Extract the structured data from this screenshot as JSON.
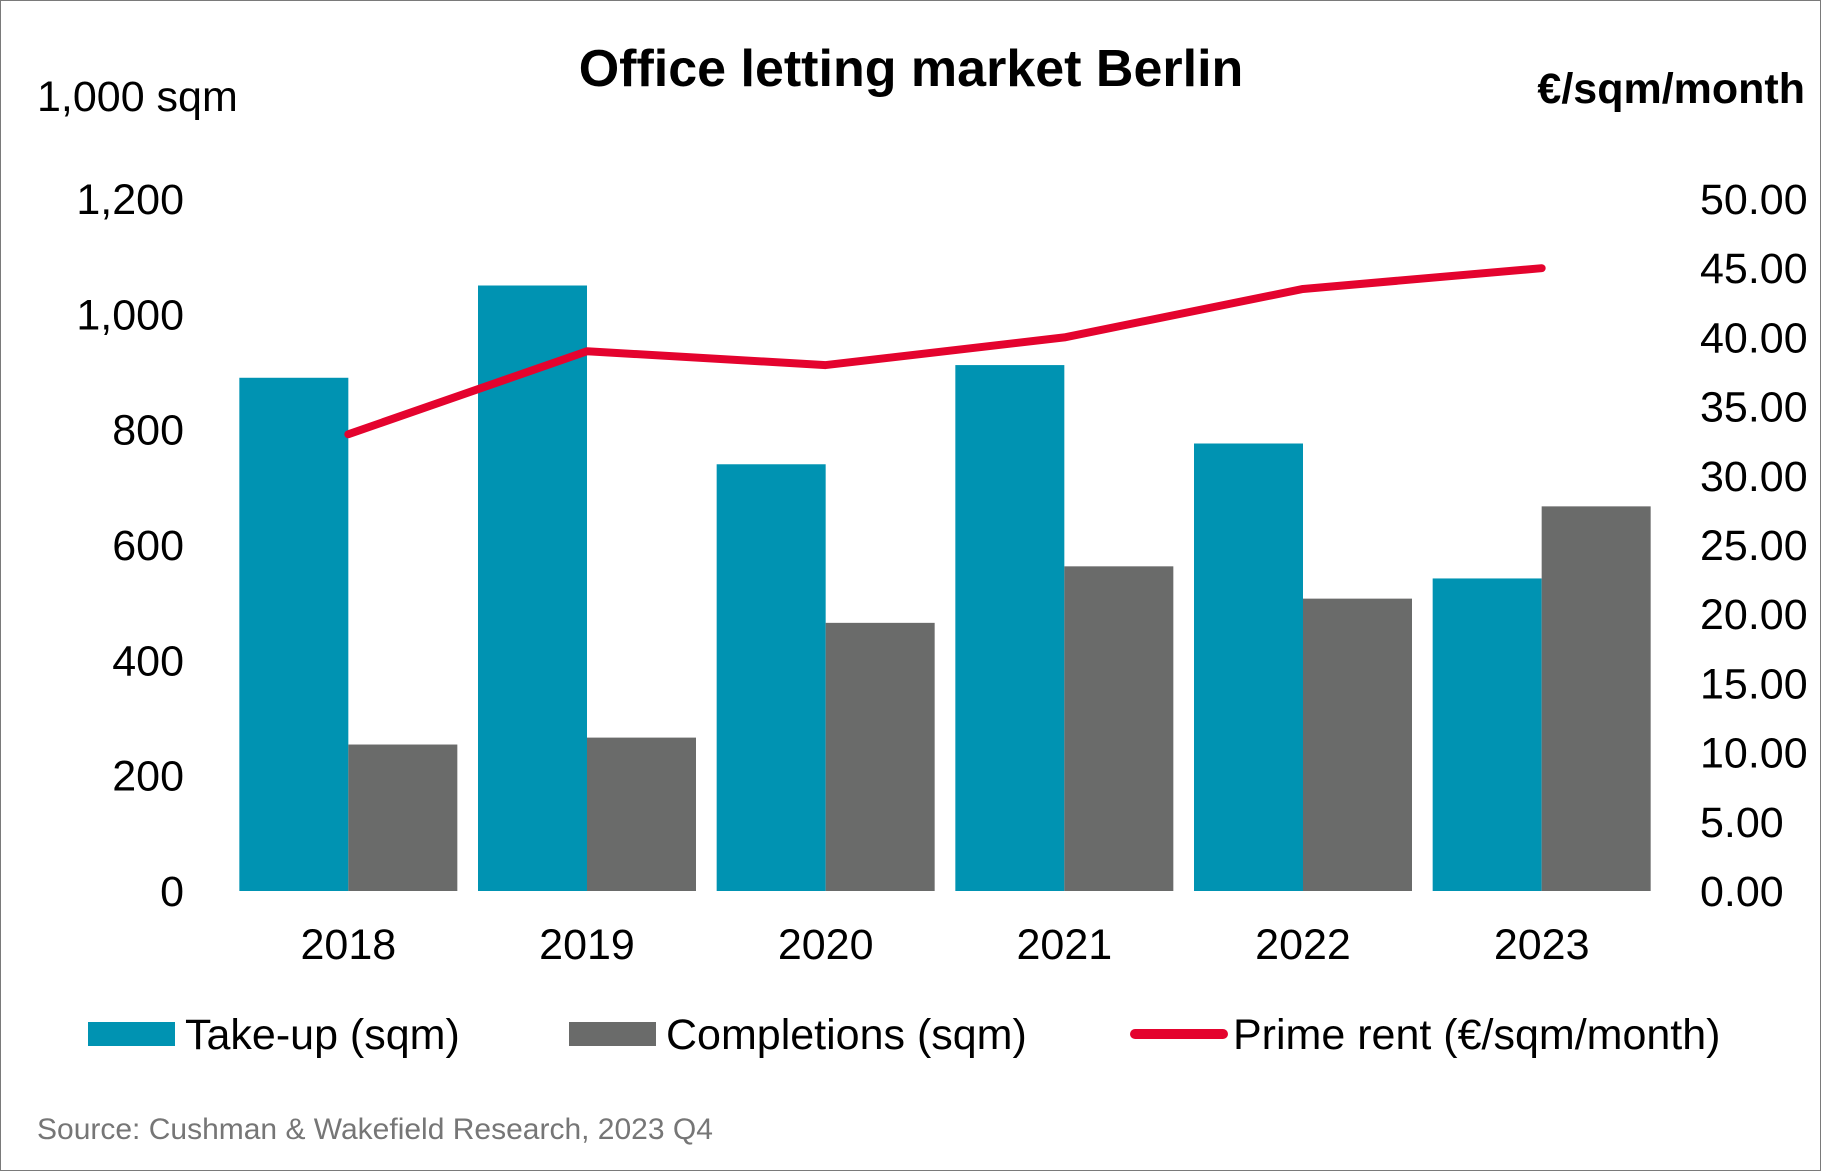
{
  "chart_data": {
    "type": "bar",
    "title": "Office letting market Berlin",
    "categories": [
      "2018",
      "2019",
      "2020",
      "2021",
      "2022",
      "2023"
    ],
    "series": [
      {
        "name": "Take-up (sqm)",
        "kind": "bar",
        "axis": "left",
        "color": "#0093B2",
        "values": [
          890,
          1050,
          740,
          912,
          776,
          542
        ]
      },
      {
        "name": "Completions (sqm)",
        "kind": "bar",
        "axis": "left",
        "color": "#6A6B6A",
        "values": [
          254,
          266,
          465,
          563,
          507,
          667
        ]
      },
      {
        "name": "Prime rent (€/sqm/month)",
        "kind": "line",
        "axis": "right",
        "color": "#E4032E",
        "values": [
          33.0,
          39.0,
          38.0,
          40.0,
          43.5,
          45.0
        ]
      }
    ],
    "y_left": {
      "label": "1,000 sqm",
      "ylim": [
        0,
        1200
      ],
      "ticks": [
        0,
        200,
        400,
        600,
        800,
        1000,
        1200
      ],
      "tick_labels": [
        "0",
        "200",
        "400",
        "600",
        "800",
        "1,000",
        "1,200"
      ]
    },
    "y_right": {
      "label": "€/sqm/month",
      "ylim": [
        0,
        50
      ],
      "ticks": [
        0,
        5,
        10,
        15,
        20,
        25,
        30,
        35,
        40,
        45,
        50
      ],
      "tick_labels": [
        "0.00",
        "5.00",
        "10.00",
        "15.00",
        "20.00",
        "25.00",
        "30.00",
        "35.00",
        "40.00",
        "45.00",
        "50.00"
      ]
    },
    "grid": false,
    "legend": "bottom",
    "source": "Source: Cushman & Wakefield Research, 2023 Q4"
  }
}
